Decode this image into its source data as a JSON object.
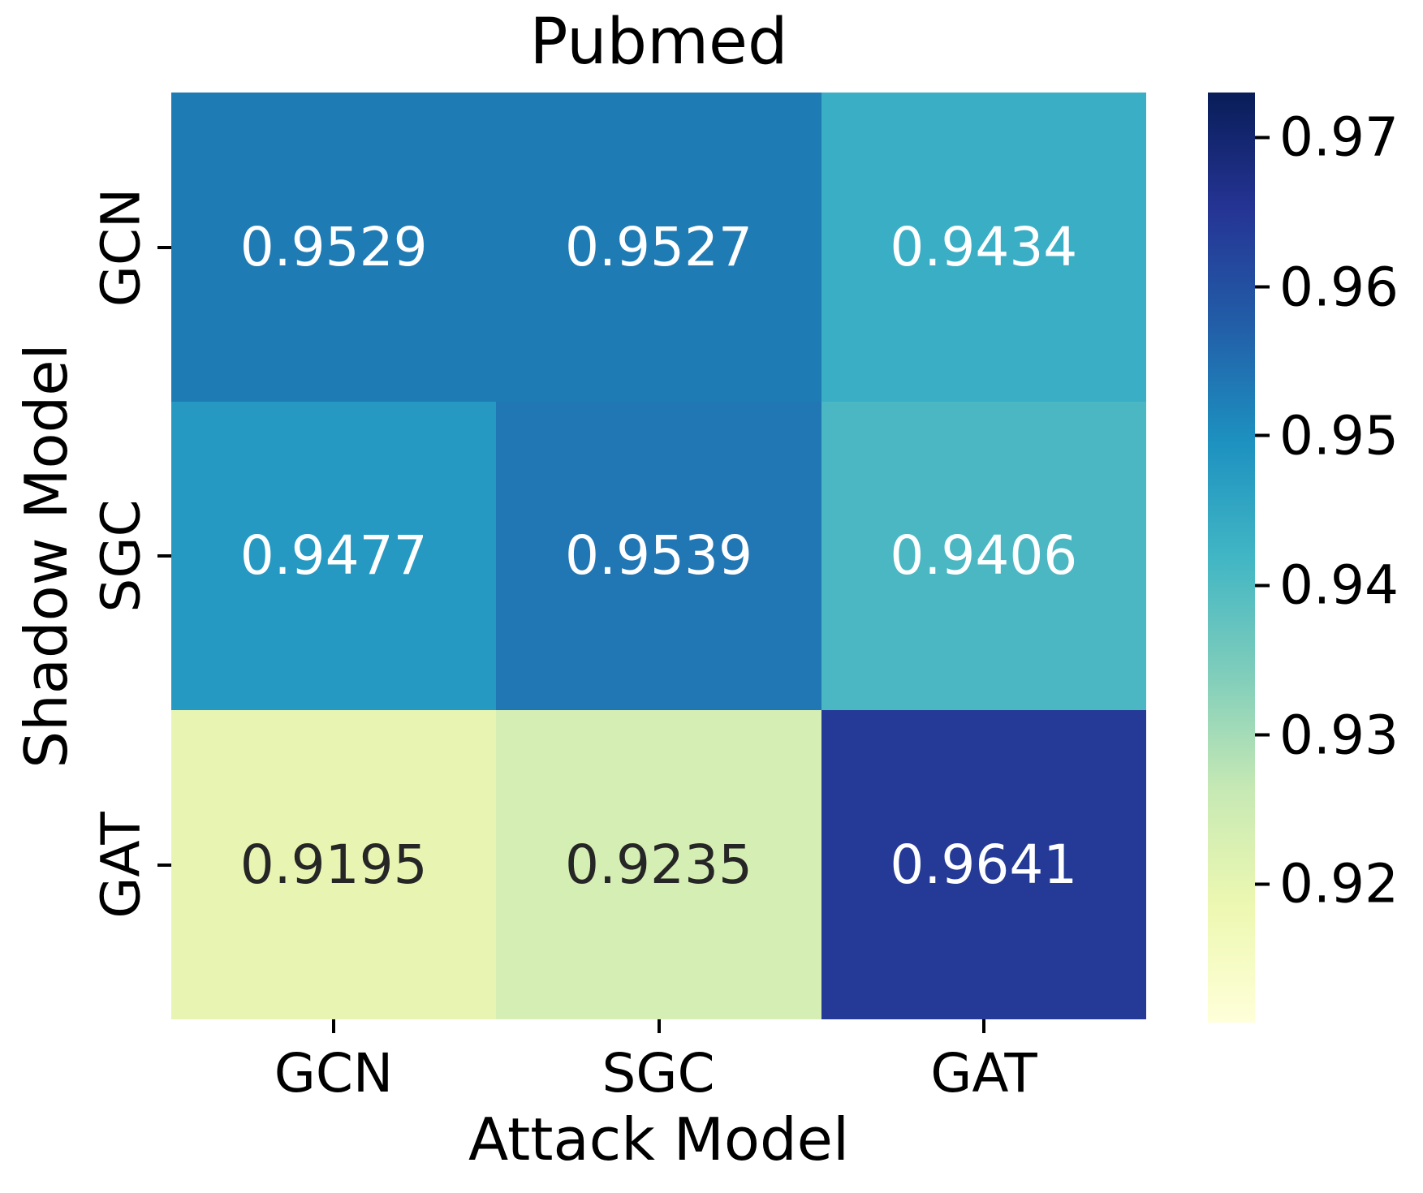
{
  "chart_data": {
    "type": "heatmap",
    "title": "Pubmed",
    "xlabel": "Attack Model",
    "ylabel": "Shadow Model",
    "x_categories": [
      "GCN",
      "SGC",
      "GAT"
    ],
    "y_categories": [
      "GCN",
      "SGC",
      "GAT"
    ],
    "values": [
      [
        0.9529,
        0.9527,
        0.9434
      ],
      [
        0.9477,
        0.9539,
        0.9406
      ],
      [
        0.9195,
        0.9235,
        0.9641
      ]
    ],
    "value_labels": [
      [
        "0.9529",
        "0.9527",
        "0.9434"
      ],
      [
        "0.9477",
        "0.9539",
        "0.9406"
      ],
      [
        "0.9195",
        "0.9235",
        "0.9641"
      ]
    ],
    "cell_colors": [
      [
        "#1f7bb4",
        "#1f7bb4",
        "#3aaec4"
      ],
      [
        "#2599c2",
        "#2176b4",
        "#4ab7c2"
      ],
      [
        "#e8f5b2",
        "#d5eeb3",
        "#243a96"
      ]
    ],
    "cell_text_colors": [
      [
        "#ffffff",
        "#ffffff",
        "#ffffff"
      ],
      [
        "#ffffff",
        "#ffffff",
        "#ffffff"
      ],
      [
        "#262626",
        "#262626",
        "#ffffff"
      ]
    ],
    "colormap": "YlGnBu",
    "colorbar": {
      "vmin": 0.911,
      "vmax": 0.973,
      "ticks": [
        {
          "label": "0.97",
          "pos": 0.048
        },
        {
          "label": "0.96",
          "pos": 0.209
        },
        {
          "label": "0.95",
          "pos": 0.369
        },
        {
          "label": "0.94",
          "pos": 0.53
        },
        {
          "label": "0.93",
          "pos": 0.691
        },
        {
          "label": "0.92",
          "pos": 0.851
        }
      ],
      "gradient_stops": [
        {
          "pos": 0,
          "color": "#081d58"
        },
        {
          "pos": 12.5,
          "color": "#253494"
        },
        {
          "pos": 25,
          "color": "#225ea8"
        },
        {
          "pos": 37.5,
          "color": "#1d91c0"
        },
        {
          "pos": 50,
          "color": "#41b6c4"
        },
        {
          "pos": 62.5,
          "color": "#7fcdbb"
        },
        {
          "pos": 75,
          "color": "#c7e9b4"
        },
        {
          "pos": 87.5,
          "color": "#edf8b1"
        },
        {
          "pos": 100,
          "color": "#ffffd9"
        }
      ]
    }
  }
}
